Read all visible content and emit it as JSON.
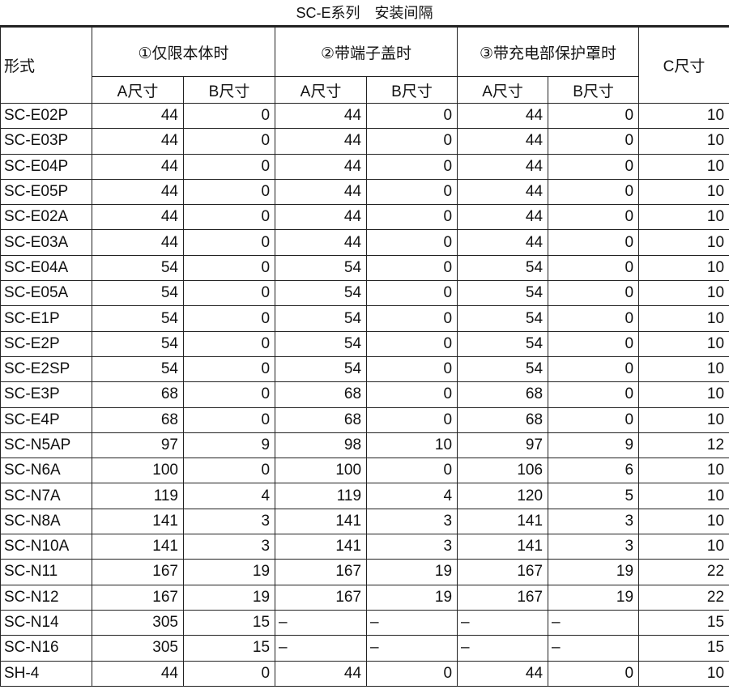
{
  "title": "SC-E系列　安装间隔",
  "headers": {
    "model": "形式",
    "groups": [
      "①仅限本体时",
      "②带端子盖时",
      "③带充电部保护罩时"
    ],
    "c": "C尺寸",
    "sub": [
      "A尺寸",
      "B尺寸",
      "A尺寸",
      "B尺寸",
      "A尺寸",
      "B尺寸"
    ]
  },
  "rows": [
    [
      "SC-E02P",
      "44",
      "0",
      "44",
      "0",
      "44",
      "0",
      "10"
    ],
    [
      "SC-E03P",
      "44",
      "0",
      "44",
      "0",
      "44",
      "0",
      "10"
    ],
    [
      "SC-E04P",
      "44",
      "0",
      "44",
      "0",
      "44",
      "0",
      "10"
    ],
    [
      "SC-E05P",
      "44",
      "0",
      "44",
      "0",
      "44",
      "0",
      "10"
    ],
    [
      "SC-E02A",
      "44",
      "0",
      "44",
      "0",
      "44",
      "0",
      "10"
    ],
    [
      "SC-E03A",
      "44",
      "0",
      "44",
      "0",
      "44",
      "0",
      "10"
    ],
    [
      "SC-E04A",
      "54",
      "0",
      "54",
      "0",
      "54",
      "0",
      "10"
    ],
    [
      "SC-E05A",
      "54",
      "0",
      "54",
      "0",
      "54",
      "0",
      "10"
    ],
    [
      "SC-E1P",
      "54",
      "0",
      "54",
      "0",
      "54",
      "0",
      "10"
    ],
    [
      "SC-E2P",
      "54",
      "0",
      "54",
      "0",
      "54",
      "0",
      "10"
    ],
    [
      "SC-E2SP",
      "54",
      "0",
      "54",
      "0",
      "54",
      "0",
      "10"
    ],
    [
      "SC-E3P",
      "68",
      "0",
      "68",
      "0",
      "68",
      "0",
      "10"
    ],
    [
      "SC-E4P",
      "68",
      "0",
      "68",
      "0",
      "68",
      "0",
      "10"
    ],
    [
      "SC-N5AP",
      "97",
      "9",
      "98",
      "10",
      "97",
      "9",
      "12"
    ],
    [
      "SC-N6A",
      "100",
      "0",
      "100",
      "0",
      "106",
      "6",
      "10"
    ],
    [
      "SC-N7A",
      "119",
      "4",
      "119",
      "4",
      "120",
      "5",
      "10"
    ],
    [
      "SC-N8A",
      "141",
      "3",
      "141",
      "3",
      "141",
      "3",
      "10"
    ],
    [
      "SC-N10A",
      "141",
      "3",
      "141",
      "3",
      "141",
      "3",
      "10"
    ],
    [
      "SC-N11",
      "167",
      "19",
      "167",
      "19",
      "167",
      "19",
      "22"
    ],
    [
      "SC-N12",
      "167",
      "19",
      "167",
      "19",
      "167",
      "19",
      "22"
    ],
    [
      "SC-N14",
      "305",
      "15",
      "–",
      "–",
      "–",
      "–",
      "15"
    ],
    [
      "SC-N16",
      "305",
      "15",
      "–",
      "–",
      "–",
      "–",
      "15"
    ],
    [
      "SH-4",
      "44",
      "0",
      "44",
      "0",
      "44",
      "0",
      "10"
    ]
  ]
}
